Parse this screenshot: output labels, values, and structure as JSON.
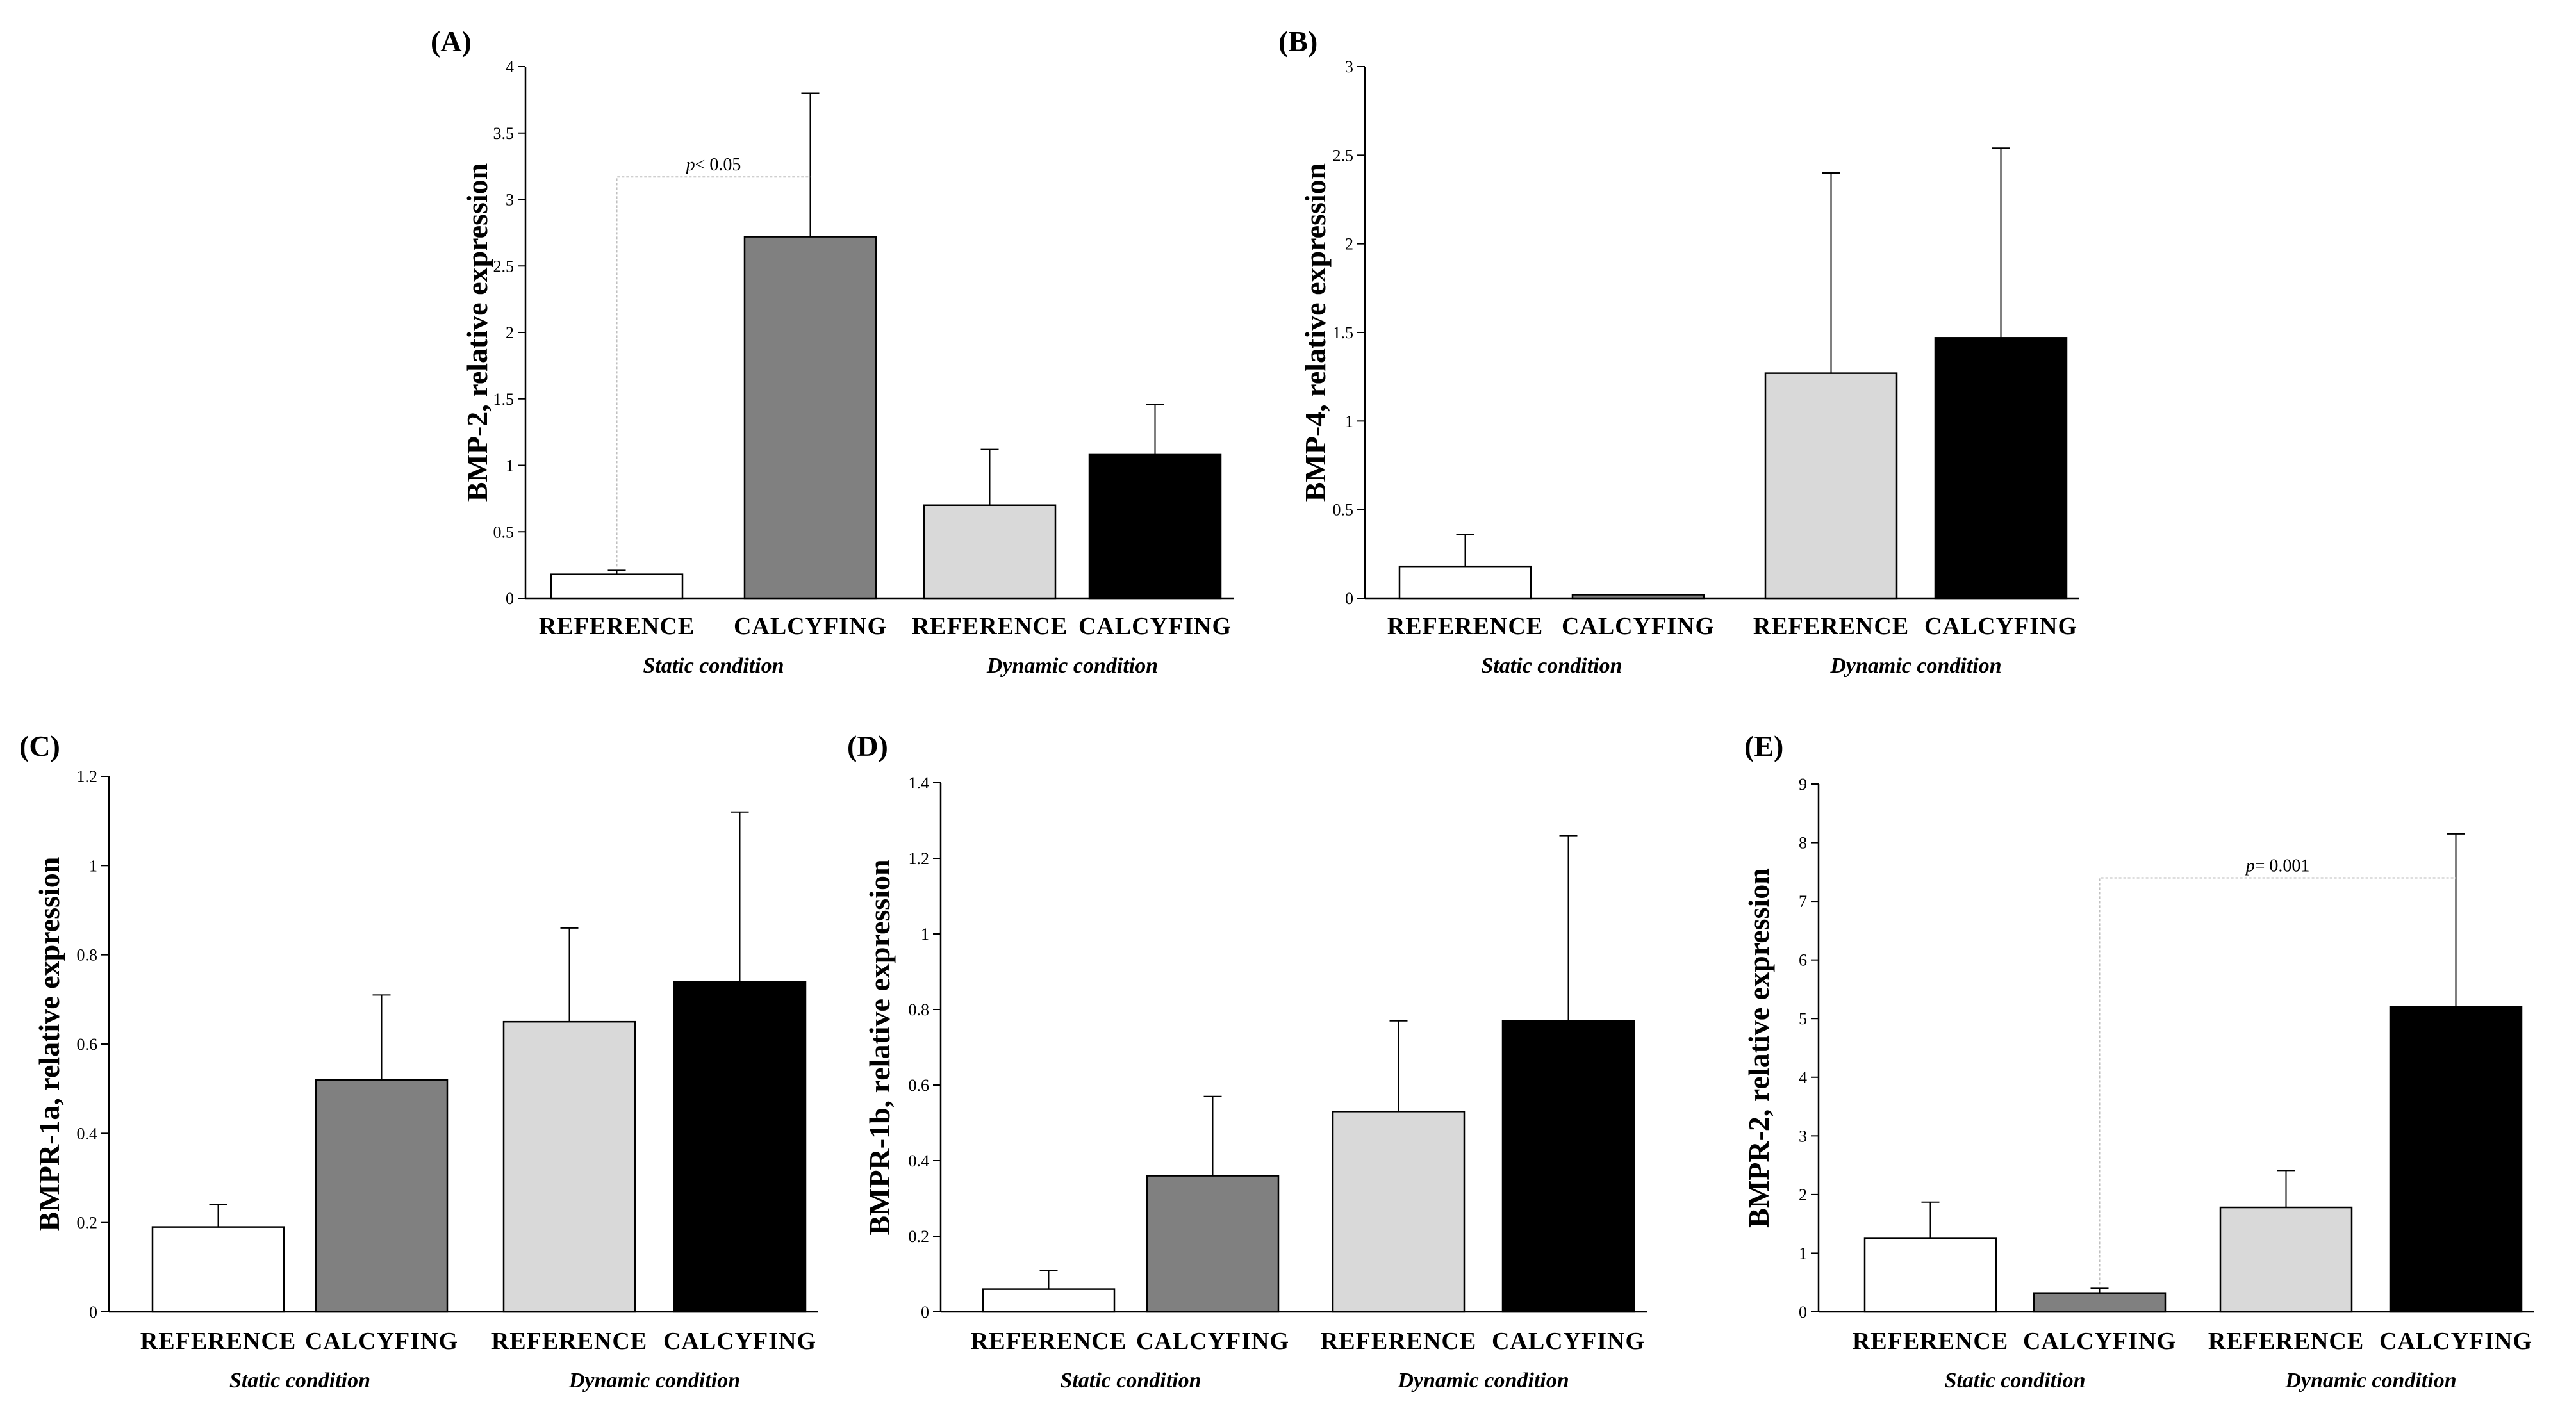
{
  "figure": {
    "colors": {
      "reference_static": "#ffffff",
      "calcifying_static": "#808080",
      "reference_dynamic": "#d9d9d9",
      "calcifying_dynamic": "#000000",
      "axis": "#000000",
      "bracket": "#bfbfbf"
    }
  },
  "chart_data": [
    {
      "id": "A",
      "type": "bar",
      "panel_label": "(A)",
      "ylabel": "BMP-2, relative expression",
      "ylim": [
        0,
        4
      ],
      "yticks": [
        "0",
        "0.5",
        "1",
        "1.5",
        "2",
        "2.5",
        "3",
        "3.5",
        "4"
      ],
      "categories": [
        "REFERENCE",
        "CALCYFING",
        "REFERENCE",
        "CALCYFING"
      ],
      "groups": [
        "Static condition",
        "Dynamic condition"
      ],
      "values": [
        0.18,
        2.72,
        0.7,
        1.08
      ],
      "errors": [
        0.03,
        1.08,
        0.42,
        0.38
      ],
      "significance": {
        "from": 0,
        "to": 1,
        "y": 3.17,
        "label_p": "p",
        "label_rest": "< 0.05"
      }
    },
    {
      "id": "B",
      "type": "bar",
      "panel_label": "(B)",
      "ylabel": "BMP-4, relative expression",
      "ylim": [
        0,
        3
      ],
      "yticks": [
        "0",
        "0.5",
        "1",
        "1.5",
        "2",
        "2.5",
        "3"
      ],
      "categories": [
        "REFERENCE",
        "CALCYFING",
        "REFERENCE",
        "CALCYFING"
      ],
      "groups": [
        "Static condition",
        "Dynamic condition"
      ],
      "values": [
        0.18,
        0.02,
        1.27,
        1.47
      ],
      "errors": [
        0.18,
        0.0,
        1.13,
        1.07
      ],
      "significance": null
    },
    {
      "id": "C",
      "type": "bar",
      "panel_label": "(C)",
      "ylabel": "BMPR-1a, relative expression",
      "ylim": [
        0,
        1.2
      ],
      "yticks": [
        "0",
        "0.2",
        "0.4",
        "0.6",
        "0.8",
        "1",
        "1.2"
      ],
      "categories": [
        "REFERENCE",
        "CALCYFING",
        "REFERENCE",
        "CALCYFING"
      ],
      "groups": [
        "Static condition",
        "Dynamic condition"
      ],
      "values": [
        0.19,
        0.52,
        0.65,
        0.74
      ],
      "errors": [
        0.05,
        0.19,
        0.21,
        0.38
      ],
      "significance": null
    },
    {
      "id": "D",
      "type": "bar",
      "panel_label": "(D)",
      "ylabel": "BMPR-1b, relative expression",
      "ylim": [
        0,
        1.4
      ],
      "yticks": [
        "0",
        "0.2",
        "0.4",
        "0.6",
        "0.8",
        "1",
        "1.2",
        "1.4"
      ],
      "categories": [
        "REFERENCE",
        "CALCYFING",
        "REFERENCE",
        "CALCYFING"
      ],
      "groups": [
        "Static condition",
        "Dynamic condition"
      ],
      "values": [
        0.06,
        0.36,
        0.53,
        0.77
      ],
      "errors": [
        0.05,
        0.21,
        0.24,
        0.49
      ],
      "significance": null
    },
    {
      "id": "E",
      "type": "bar",
      "panel_label": "(E)",
      "ylabel": "BMPR-2, relative expression",
      "ylim": [
        0,
        9
      ],
      "yticks": [
        "0",
        "1",
        "2",
        "3",
        "4",
        "5",
        "6",
        "7",
        "8",
        "9"
      ],
      "categories": [
        "REFERENCE",
        "CALCYFING",
        "REFERENCE",
        "CALCYFING"
      ],
      "groups": [
        "Static condition",
        "Dynamic condition"
      ],
      "values": [
        1.25,
        0.32,
        1.78,
        5.2
      ],
      "errors": [
        0.62,
        0.08,
        0.63,
        2.95
      ],
      "significance": {
        "from": 1,
        "to": 3,
        "y": 7.4,
        "label_p": "p",
        "label_rest": "= 0.001"
      }
    }
  ]
}
